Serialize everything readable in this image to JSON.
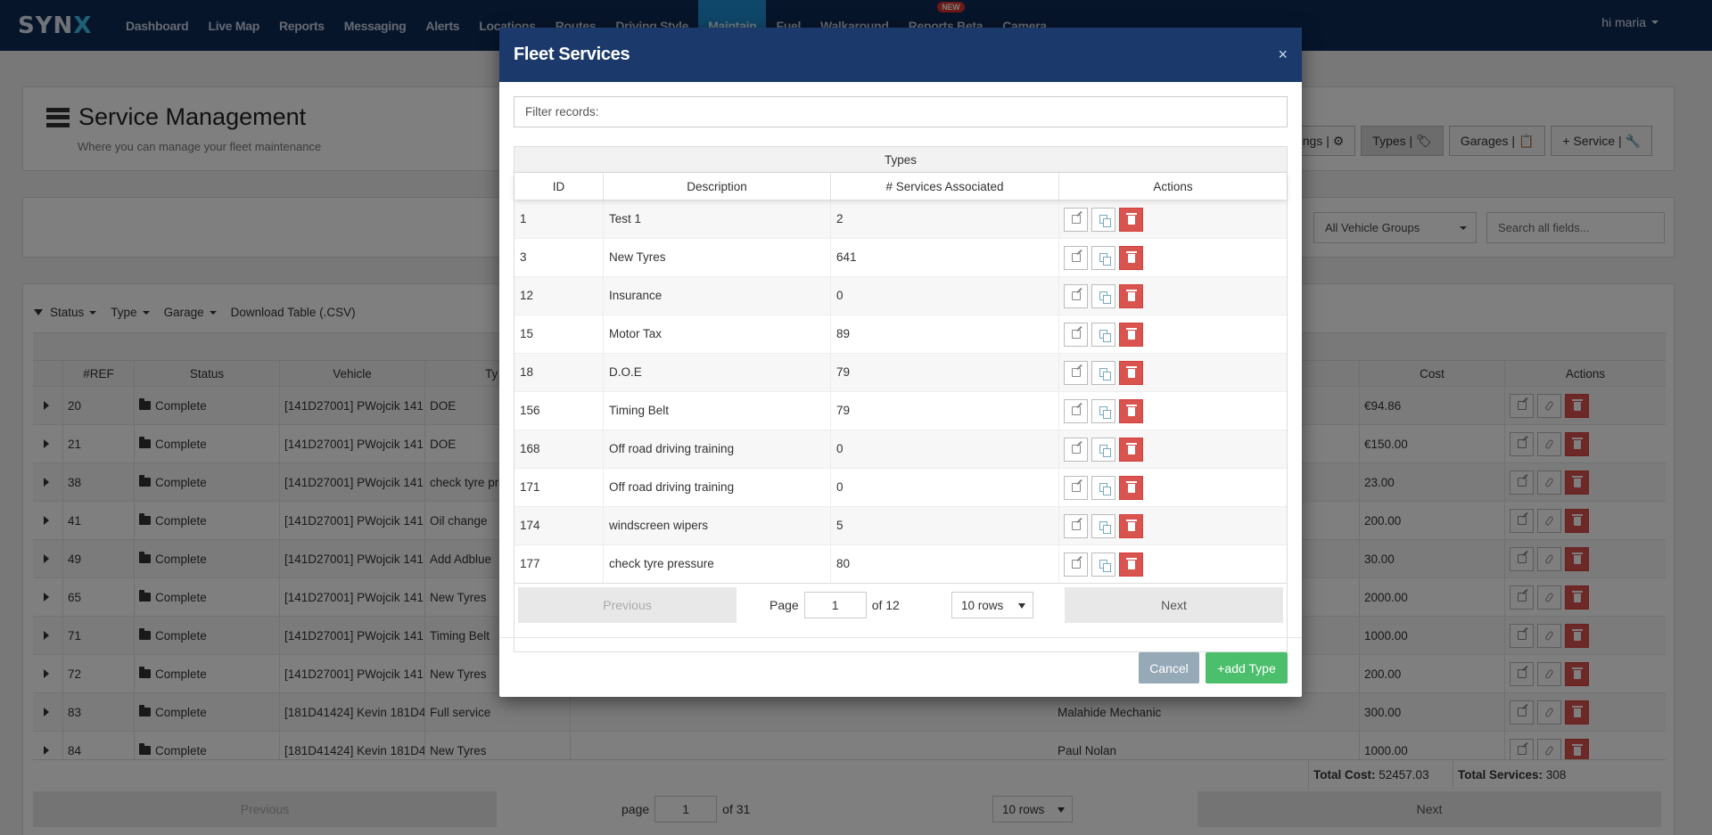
{
  "nav": {
    "logo": "SYN",
    "logo_accent": "X",
    "items": [
      "Dashboard",
      "Live Map",
      "Reports",
      "Messaging",
      "Alerts",
      "Locations",
      "Routes",
      "Driving Style",
      "Maintain",
      "Fuel",
      "Walkaround",
      "Reports Beta",
      "Camera"
    ],
    "active": "Maintain",
    "badge": "NEW",
    "user": "hi maria"
  },
  "header": {
    "title": "Service Management",
    "subtitle": "Where you can manage your fleet maintenance",
    "buttons": {
      "settings": "Settings | ⚙",
      "types": "Types | 🏷",
      "garages": "Garages | 📋",
      "service": "+ Service | 🔧"
    }
  },
  "filters": {
    "vehicle_group": "All Vehicle Groups",
    "search_placeholder": "Search all fields..."
  },
  "main_table": {
    "toolbar": {
      "status": "Status",
      "type": "Type",
      "garage": "Garage",
      "download": "Download Table (.CSV)"
    },
    "columns": {
      "ref": "#REF",
      "status": "Status",
      "vehicle": "Vehicle",
      "type": "Ty",
      "cost": "Cost",
      "actions": "Actions"
    },
    "rows": [
      {
        "ref": "20",
        "status": "Complete",
        "vehicle": "[141D27001] PWojcik 141",
        "type": "DOE",
        "garage": "",
        "cost": "€94.86"
      },
      {
        "ref": "21",
        "status": "Complete",
        "vehicle": "[141D27001] PWojcik 141",
        "type": "DOE",
        "garage": "",
        "cost": "€150.00"
      },
      {
        "ref": "38",
        "status": "Complete",
        "vehicle": "[141D27001] PWojcik 141",
        "type": "check tyre pr",
        "garage": "",
        "cost": "23.00"
      },
      {
        "ref": "41",
        "status": "Complete",
        "vehicle": "[141D27001] PWojcik 141",
        "type": "Oil change",
        "garage": "",
        "cost": "200.00"
      },
      {
        "ref": "49",
        "status": "Complete",
        "vehicle": "[141D27001] PWojcik 141",
        "type": "Add Adblue",
        "garage": "",
        "cost": "30.00"
      },
      {
        "ref": "65",
        "status": "Complete",
        "vehicle": "[141D27001] PWojcik 141",
        "type": "New Tyres",
        "garage": "",
        "cost": "2000.00"
      },
      {
        "ref": "71",
        "status": "Complete",
        "vehicle": "[141D27001] PWojcik 141",
        "type": "Timing Belt",
        "garage": "",
        "cost": "1000.00"
      },
      {
        "ref": "72",
        "status": "Complete",
        "vehicle": "[141D27001] PWojcik 141",
        "type": "New Tyres",
        "garage": "",
        "cost": "200.00"
      },
      {
        "ref": "83",
        "status": "Complete",
        "vehicle": "[181D41424] Kevin 181D4",
        "type": "Full service",
        "garage": "Malahide Mechanic",
        "cost": "300.00"
      },
      {
        "ref": "84",
        "status": "Complete",
        "vehicle": "[181D41424] Kevin 181D4",
        "type": "New Tyres",
        "garage": "Paul Nolan",
        "cost": "1000.00"
      }
    ],
    "footer": {
      "total_cost_label": "Total Cost:",
      "total_cost": "52457.03",
      "total_services_label": "Total Services:",
      "total_services": "308"
    },
    "pager": {
      "previous": "Previous",
      "page_label": "page",
      "page": "1",
      "of": "of 31",
      "rows": "10 rows",
      "next": "Next"
    }
  },
  "modal": {
    "title": "Fleet Services",
    "close": "×",
    "filter_placeholder": "Filter records:",
    "caption": "Types",
    "columns": {
      "id": "ID",
      "description": "Description",
      "services": "# Services Associated",
      "actions": "Actions"
    },
    "rows": [
      {
        "id": "1",
        "description": "Test 1",
        "services": "2"
      },
      {
        "id": "3",
        "description": "New Tyres",
        "services": "641"
      },
      {
        "id": "12",
        "description": "Insurance",
        "services": "0"
      },
      {
        "id": "15",
        "description": "Motor Tax",
        "services": "89"
      },
      {
        "id": "18",
        "description": "D.O.E",
        "services": "79"
      },
      {
        "id": "156",
        "description": "Timing Belt",
        "services": "79"
      },
      {
        "id": "168",
        "description": "Off road driving training",
        "services": "0"
      },
      {
        "id": "171",
        "description": "Off road driving training",
        "services": "0"
      },
      {
        "id": "174",
        "description": "windscreen wipers",
        "services": "5"
      },
      {
        "id": "177",
        "description": "check tyre pressure",
        "services": "80"
      }
    ],
    "pager": {
      "previous": "Previous",
      "page_label": "Page",
      "page": "1",
      "of": "of 12",
      "rows": "10 rows",
      "next": "Next"
    },
    "cancel": "Cancel",
    "add": "+add Type"
  },
  "colors": {
    "navbar": "#0f2a57",
    "active_nav": "#1f8fd4",
    "modal_header": "#1b3a6b",
    "delete": "#d9534f",
    "add": "#4cbf6c",
    "cancel": "#95a9b7"
  }
}
